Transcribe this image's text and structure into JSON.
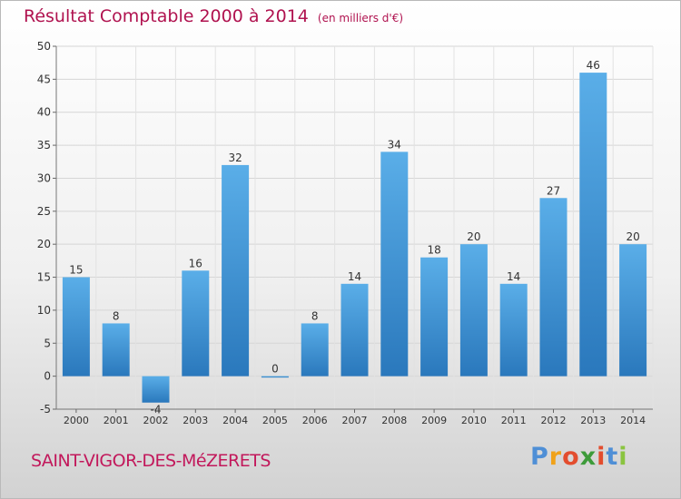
{
  "title": "Résultat Comptable 2000 à 2014",
  "unit_note": "(en milliers d'€)",
  "commune": "SAINT-VIGOR-DES-MéZERETS",
  "brand": {
    "text": "Proxiti",
    "letters": [
      "P",
      "r",
      "o",
      "x",
      "i",
      "t",
      "i"
    ],
    "colors": [
      "#4f8fd6",
      "#f0a21a",
      "#e34d2e",
      "#3d9b3a",
      "#e34d2e",
      "#4f8fd6",
      "#8ac43f"
    ]
  },
  "colors": {
    "title": "#b0124f",
    "commune": "#c2185b",
    "bar_light": "#5aaee8",
    "bar_dark": "#2a78bc"
  },
  "chart_data": {
    "type": "bar",
    "categories": [
      "2000",
      "2001",
      "2002",
      "2003",
      "2004",
      "2005",
      "2006",
      "2007",
      "2008",
      "2009",
      "2010",
      "2011",
      "2012",
      "2013",
      "2014"
    ],
    "values": [
      15,
      8,
      -4,
      16,
      32,
      0,
      8,
      14,
      34,
      18,
      20,
      14,
      27,
      46,
      20
    ],
    "data_labels": [
      "15",
      "8",
      "-4",
      "16",
      "32",
      "0",
      "8",
      "14",
      "34",
      "18",
      "20",
      "14",
      "27",
      "46",
      "20"
    ],
    "ylim": [
      -5,
      50
    ],
    "yticks": [
      -5,
      0,
      5,
      10,
      15,
      20,
      25,
      30,
      35,
      40,
      45,
      50
    ],
    "grid": true,
    "legend": "none"
  }
}
